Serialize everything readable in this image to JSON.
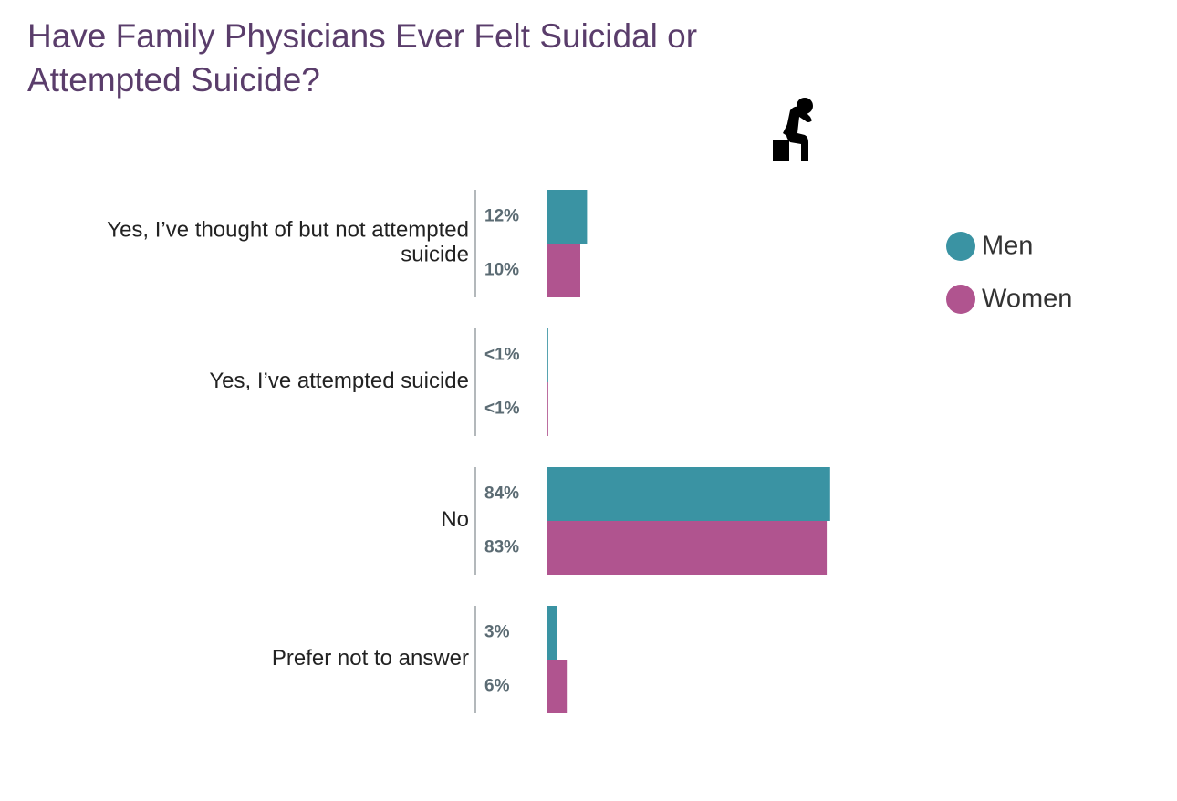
{
  "chart_data": {
    "type": "bar",
    "orientation": "horizontal",
    "title": "Have Family Physicians Ever Felt Suicidal or Attempted Suicide?",
    "categories": [
      "Yes, I’ve thought of but not attempted suicide",
      "Yes, I’ve attempted suicide",
      "No",
      "Prefer not to answer"
    ],
    "series": [
      {
        "name": "Men",
        "color": "#3a93a3",
        "values": [
          12,
          0.5,
          84,
          3
        ],
        "value_labels": [
          "12%",
          "<1%",
          "84%",
          "3%"
        ]
      },
      {
        "name": "Women",
        "color": "#b0548f",
        "values": [
          10,
          0.5,
          83,
          6
        ],
        "value_labels": [
          "10%",
          "<1%",
          "83%",
          "6%"
        ]
      }
    ],
    "xlim": [
      0,
      100
    ],
    "legend": "right"
  }
}
